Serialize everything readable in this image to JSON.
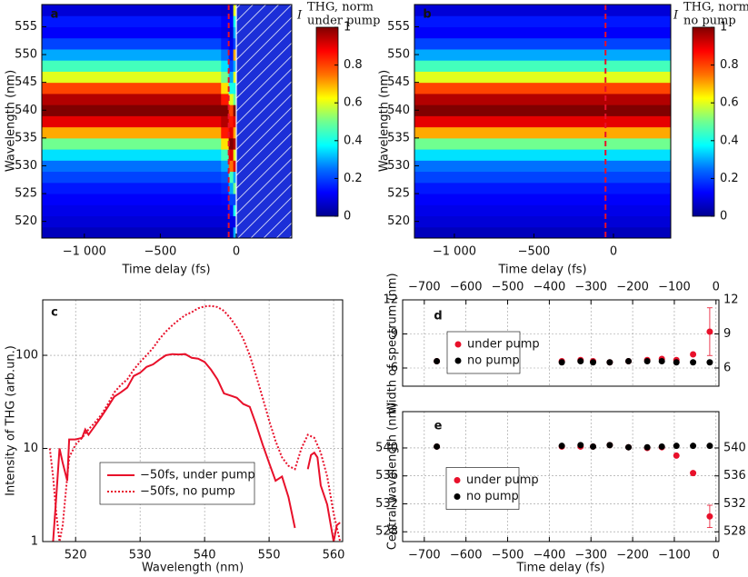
{
  "chart_data": [
    {
      "type": "heatmap",
      "panel_label": "a",
      "xlabel": "Time delay (fs)",
      "ylabel": "Wavelength (nm)",
      "colorbar_label": {
        "symbol": "I",
        "sup": "THG, norm",
        "sub": "under pump"
      },
      "xlim": [
        -1280,
        365
      ],
      "ylim": [
        517,
        559
      ],
      "xticks": [
        {
          "value": -1000,
          "label": "−1 000"
        },
        {
          "value": -500,
          "label": "−500"
        },
        0
      ],
      "yticks": [
        520,
        525,
        530,
        535,
        540,
        545,
        550,
        555
      ],
      "xbins": [
        -1280,
        -100,
        -50,
        -20,
        0
      ],
      "ybins": [
        517,
        519,
        521,
        523,
        525,
        527,
        529,
        531,
        533,
        535,
        537,
        539,
        541,
        543,
        545,
        547,
        549,
        551,
        553,
        555,
        557,
        559
      ],
      "z": [
        [
          0.05,
          0.05,
          0.06,
          0.3
        ],
        [
          0.08,
          0.08,
          0.1,
          0.1
        ],
        [
          0.1,
          0.1,
          0.15,
          0.4
        ],
        [
          0.12,
          0.13,
          0.2,
          0.2
        ],
        [
          0.15,
          0.17,
          0.3,
          0.5
        ],
        [
          0.2,
          0.22,
          0.45,
          0.3
        ],
        [
          0.25,
          0.3,
          0.75,
          0.9
        ],
        [
          0.35,
          0.45,
          0.9,
          0.6
        ],
        [
          0.5,
          0.65,
          1,
          0.95
        ],
        [
          0.7,
          0.85,
          0.9,
          0.7
        ],
        [
          0.9,
          0.95,
          0.85,
          0.9
        ],
        [
          1,
          1,
          0.8,
          1
        ],
        [
          0.95,
          0.85,
          0.6,
          0.5
        ],
        [
          0.8,
          0.65,
          0.4,
          0.4
        ],
        [
          0.6,
          0.5,
          0.3,
          0.6
        ],
        [
          0.45,
          0.35,
          0.2,
          0.3
        ],
        [
          0.3,
          0.25,
          0.15,
          0.7
        ],
        [
          0.2,
          0.15,
          0.1,
          0.2
        ],
        [
          0.12,
          0.1,
          0.08,
          0.3
        ],
        [
          0.15,
          0.12,
          0.12,
          0.4
        ],
        [
          0.08,
          0.07,
          0.07,
          0.6
        ]
      ],
      "zlim": [
        0,
        1
      ],
      "zticks": [
        0,
        0.2,
        0.4,
        0.6,
        0.8,
        1
      ],
      "colormap": [
        "#00008f",
        "#0000ff",
        "#0070ff",
        "#00ffff",
        "#70ff90",
        "#ffff00",
        "#ff7000",
        "#ff0000",
        "#800000"
      ],
      "no_data_from": 0,
      "marker_x": -50,
      "marker_color": "#e8102a"
    },
    {
      "type": "heatmap",
      "panel_label": "b",
      "xlabel": "Time delay (fs)",
      "ylabel": "Wavelength (nm)",
      "colorbar_label": {
        "symbol": "I",
        "sup": "THG, norm",
        "sub": "no pump"
      },
      "xlim": [
        -1251,
        360
      ],
      "ylim": [
        517,
        559
      ],
      "xticks": [
        {
          "value": -1000,
          "label": "−1 000"
        },
        {
          "value": -500,
          "label": "−500"
        },
        0
      ],
      "yticks": [
        520,
        525,
        530,
        535,
        540,
        545,
        550,
        555
      ],
      "xbins": [
        -1251,
        360
      ],
      "ybins": [
        517,
        519,
        521,
        523,
        525,
        527,
        529,
        531,
        533,
        535,
        537,
        539,
        541,
        543,
        545,
        547,
        549,
        551,
        553,
        555,
        557,
        559
      ],
      "z": [
        [
          0.05
        ],
        [
          0.08
        ],
        [
          0.1
        ],
        [
          0.12
        ],
        [
          0.15
        ],
        [
          0.2
        ],
        [
          0.25
        ],
        [
          0.35
        ],
        [
          0.5
        ],
        [
          0.7
        ],
        [
          0.9
        ],
        [
          1
        ],
        [
          0.95
        ],
        [
          0.8
        ],
        [
          0.6
        ],
        [
          0.45
        ],
        [
          0.3
        ],
        [
          0.2
        ],
        [
          0.12
        ],
        [
          0.15
        ],
        [
          0.08
        ]
      ],
      "zlim": [
        0,
        1
      ],
      "zticks": [
        0,
        0.2,
        0.4,
        0.6,
        0.8,
        1
      ],
      "colormap": [
        "#00008f",
        "#0000ff",
        "#0070ff",
        "#00ffff",
        "#70ff90",
        "#ffff00",
        "#ff7000",
        "#ff0000",
        "#800000"
      ],
      "marker_x": -50,
      "marker_color": "#e8102a"
    },
    {
      "type": "line",
      "panel_label": "c",
      "xlabel": "Wavelength (nm)",
      "ylabel": "Intensity of THG (arb.un.)",
      "xlim": [
        514.9,
        561.4
      ],
      "ylim": [
        1,
        394
      ],
      "ylog": true,
      "grid": true,
      "xticks": [
        520,
        530,
        540,
        550,
        560
      ],
      "yticks": [
        1,
        10,
        100
      ],
      "legend": "lower center",
      "series": [
        {
          "name": "−50fs, under pump",
          "color": "#e8102a",
          "style": "solid",
          "x": [
            516.5,
            517,
            517.5,
            518,
            518.7,
            519,
            520,
            521,
            521.5,
            522,
            523,
            524,
            525,
            526,
            527,
            528,
            529,
            530,
            531,
            532,
            533,
            534,
            535,
            536,
            537,
            538,
            539,
            540,
            541,
            542,
            543,
            544,
            545,
            546,
            547,
            548,
            549,
            550,
            551,
            552,
            553,
            554,
            555,
            556,
            556.5,
            557,
            557.5,
            558,
            559,
            560,
            560.5,
            561
          ],
          "values": [
            1,
            3,
            10,
            7,
            4.5,
            12.5,
            12.5,
            13,
            16,
            14,
            17.5,
            22,
            28,
            36,
            40,
            45,
            60,
            65,
            75,
            80,
            90,
            100,
            103,
            102,
            103,
            94,
            92,
            85,
            70,
            55,
            39,
            37,
            35,
            30,
            28,
            18,
            11,
            7,
            4.5,
            5,
            3,
            1.4,
            null,
            6,
            8.5,
            9,
            8,
            4,
            2.5,
            1,
            1.5,
            1.6
          ]
        },
        {
          "name": "−50fs, no pump",
          "color": "#e8102a",
          "style": "dotted",
          "x": [
            516,
            516.5,
            517,
            517.5,
            518,
            518.5,
            519,
            520,
            521,
            522,
            523,
            524,
            525,
            526,
            527,
            528,
            529,
            530,
            531,
            532,
            533,
            534,
            535,
            536,
            537,
            538,
            539,
            540,
            541,
            542,
            543,
            544,
            545,
            546,
            547,
            548,
            549,
            550,
            551,
            552,
            553,
            554,
            555,
            556,
            557,
            558,
            559,
            560,
            561
          ],
          "values": [
            10,
            5,
            2,
            1,
            1.5,
            3.5,
            8,
            11,
            13,
            16,
            19,
            23,
            30,
            40,
            48,
            55,
            70,
            85,
            100,
            120,
            150,
            180,
            210,
            240,
            270,
            290,
            320,
            335,
            340,
            330,
            300,
            250,
            200,
            150,
            100,
            60,
            35,
            20,
            12,
            8,
            6.5,
            6,
            10,
            14,
            13,
            9,
            5,
            2,
            1
          ]
        }
      ]
    },
    {
      "type": "scatter",
      "panel_label": "d",
      "ylabel": "Width of spectrum (nm)",
      "xaxis_position": "top",
      "y_right_labels": true,
      "grid": true,
      "xlim": [
        -752,
        7
      ],
      "ylim": [
        4.4,
        12
      ],
      "xticks": [
        {
          "value": -700,
          "label": "−700"
        },
        {
          "value": -600,
          "label": "−600"
        },
        {
          "value": -500,
          "label": "−500"
        },
        {
          "value": -400,
          "label": "−400"
        },
        {
          "value": -300,
          "label": "−300"
        },
        {
          "value": -200,
          "label": "−200"
        },
        {
          "value": -100,
          "label": "−100"
        },
        0
      ],
      "yticks": [
        6,
        9,
        12
      ],
      "legend": "upper left",
      "series": [
        {
          "name": "under pump",
          "color": "#e8102a",
          "x": [
            -670,
            -370,
            -325,
            -295,
            -255,
            -210,
            -165,
            -130,
            -95,
            -55,
            -15
          ],
          "values": [
            6.6,
            6.6,
            6.7,
            6.6,
            6.5,
            6.6,
            6.7,
            6.8,
            6.7,
            7.2,
            9.2
          ],
          "errors": [
            null,
            null,
            null,
            null,
            null,
            null,
            null,
            null,
            null,
            null,
            2.1
          ]
        },
        {
          "name": "no pump",
          "color": "#000000",
          "x": [
            -670,
            -370,
            -325,
            -295,
            -255,
            -210,
            -165,
            -130,
            -95,
            -55,
            -15
          ],
          "values": [
            6.6,
            6.5,
            6.6,
            6.5,
            6.5,
            6.6,
            6.6,
            6.6,
            6.5,
            6.5,
            6.5
          ]
        }
      ]
    },
    {
      "type": "scatter",
      "panel_label": "e",
      "xlabel": "Time delay (fs)",
      "ylabel": "Central wavelength (nm)",
      "xaxis_position": "bottom",
      "y_right_labels": true,
      "grid": true,
      "xlim": [
        -752,
        7
      ],
      "ylim": [
        526.6,
        545.2
      ],
      "xticks": [
        {
          "value": -700,
          "label": "−700"
        },
        {
          "value": -600,
          "label": "−600"
        },
        {
          "value": -500,
          "label": "−500"
        },
        {
          "value": -400,
          "label": "−400"
        },
        {
          "value": -300,
          "label": "−300"
        },
        {
          "value": -200,
          "label": "−200"
        },
        {
          "value": -100,
          "label": "−100"
        },
        0
      ],
      "yticks": [
        528,
        532,
        536,
        540
      ],
      "legend": "center left",
      "series": [
        {
          "name": "under pump",
          "color": "#e8102a",
          "x": [
            -670,
            -370,
            -325,
            -295,
            -255,
            -210,
            -165,
            -130,
            -95,
            -55,
            -15
          ],
          "values": [
            540.2,
            540.2,
            540.2,
            540.2,
            540.4,
            540.1,
            540,
            540.1,
            538.9,
            536.4,
            530.2
          ],
          "errors": [
            null,
            null,
            null,
            null,
            null,
            null,
            null,
            null,
            null,
            null,
            1.6
          ]
        },
        {
          "name": "no pump",
          "color": "#000000",
          "x": [
            -670,
            -370,
            -325,
            -295,
            -255,
            -210,
            -165,
            -130,
            -95,
            -55,
            -15
          ],
          "values": [
            540.2,
            540.3,
            540.4,
            540.2,
            540.4,
            540.1,
            540.1,
            540.2,
            540.3,
            540.3,
            540.3
          ]
        }
      ]
    }
  ]
}
